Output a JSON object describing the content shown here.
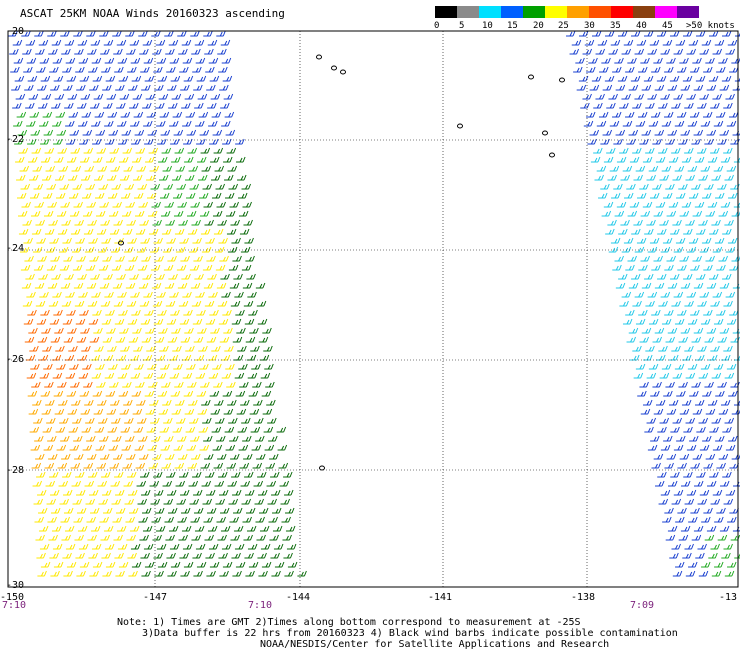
{
  "title": "ASCAT 25KM NOAA Winds 20160323 ascending",
  "legend": {
    "labels": [
      "0",
      "5",
      "10",
      "15",
      "20",
      "25",
      "30",
      "35",
      "40",
      "45",
      ">50 knots"
    ],
    "colors": [
      "#000000",
      "#8a8a8a",
      "#00e0ff",
      "#0060ff",
      "#00a000",
      "#ffff00",
      "#ffa000",
      "#ff5000",
      "#ff0000",
      "#8a4010",
      "#ff00ff",
      "#6a00a0"
    ]
  },
  "lat_labels": [
    "-20",
    "-22",
    "-24",
    "-26",
    "-28",
    "-30"
  ],
  "lon_labels": [
    "-150",
    "-147",
    "-144",
    "-141",
    "-138",
    "-13"
  ],
  "time_labels": [
    "7:10",
    "7:10",
    "7:09"
  ],
  "notes": [
    "Note: 1) Times are GMT 2)Times along bottom correspond to measurement at -25S",
    "3)Data buffer is 22 hrs from 20160323 4) Black wind barbs indicate possible contamination",
    "NOAA/NESDIS/Center for Satellite Applications and Research"
  ],
  "colors": {
    "dark_green": "#0a6a0a",
    "green": "#22aa22",
    "yellow": "#ffe800",
    "orange": "#ffaa00",
    "dark_orange": "#ff6a00",
    "blue": "#1a40d0",
    "cyan": "#22c8e8",
    "time": "#7a1f7a"
  }
}
